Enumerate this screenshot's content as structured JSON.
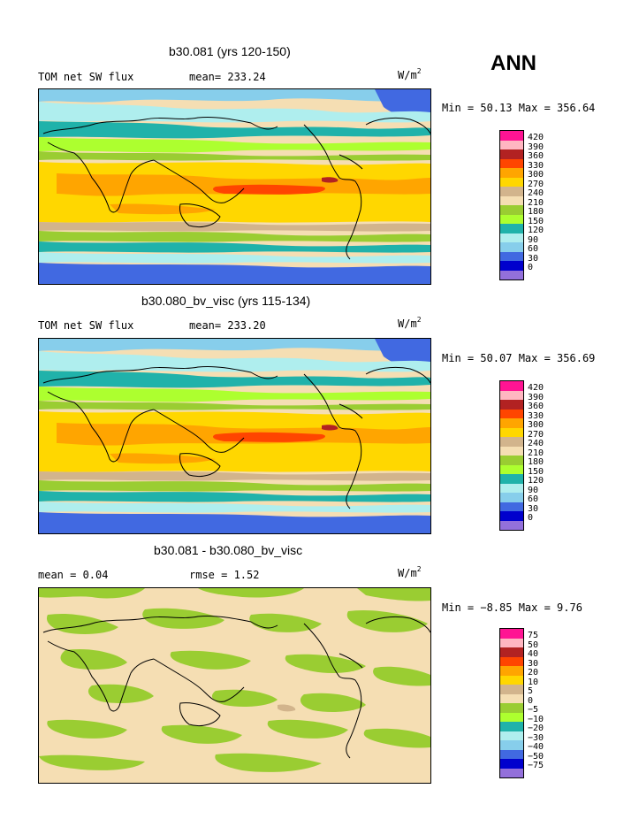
{
  "season_label": "ANN",
  "units_main": "W/m",
  "units_sup": "2",
  "panels": [
    {
      "title": "b30.081 (yrs 120-150)",
      "left_label": "TOM net SW flux",
      "mid_label": "mean= 233.24",
      "minmax": "Min =  50.13 Max = 356.64",
      "levels": [
        "420",
        "390",
        "360",
        "330",
        "300",
        "270",
        "240",
        "210",
        "180",
        "150",
        "120",
        "90",
        "60",
        "30",
        "0"
      ]
    },
    {
      "title": "b30.080_bv_visc (yrs 115-134)",
      "left_label": "TOM net SW flux",
      "mid_label": "mean= 233.20",
      "minmax": "Min =  50.07 Max = 356.69",
      "levels": [
        "420",
        "390",
        "360",
        "330",
        "300",
        "270",
        "240",
        "210",
        "180",
        "150",
        "120",
        "90",
        "60",
        "30",
        "0"
      ]
    },
    {
      "title": "b30.081 - b30.080_bv_visc",
      "left_label": "mean =    0.04",
      "mid_label": "rmse =    1.52",
      "minmax": "Min =  −8.85 Max =    9.76",
      "levels": [
        "75",
        "50",
        "40",
        "30",
        "20",
        "10",
        "5",
        "0",
        "−5",
        "−10",
        "−20",
        "−30",
        "−40",
        "−50",
        "−75"
      ]
    }
  ],
  "colors": {
    "scale": [
      "#ff1493",
      "#ffb6c1",
      "#b22222",
      "#ff4500",
      "#ffa500",
      "#ffd700",
      "#d2b48c",
      "#f5deb3",
      "#9acd32",
      "#adff2f",
      "#20b2aa",
      "#afeeee",
      "#87ceeb",
      "#4169e1",
      "#0000cd",
      "#9370db"
    ]
  }
}
